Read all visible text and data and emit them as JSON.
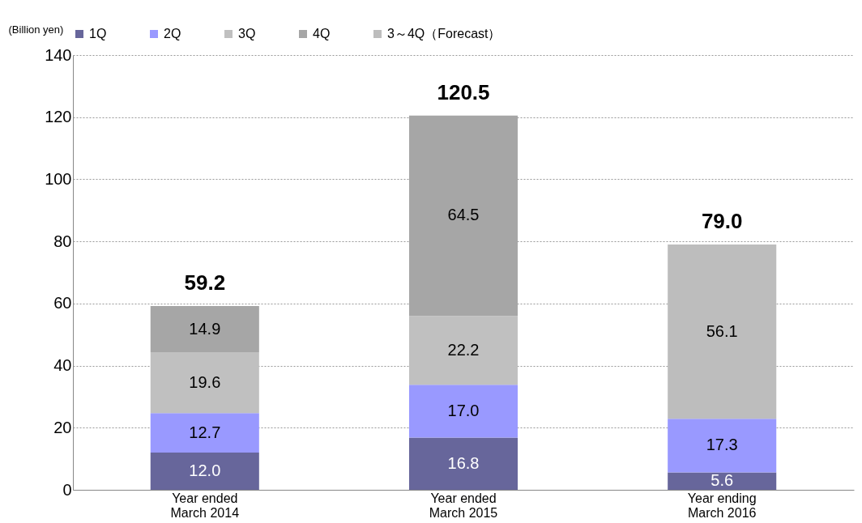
{
  "chart_data": {
    "type": "bar",
    "stacked": true,
    "ylabel": "(Billion yen)",
    "categories": [
      "Year ended\nMarch 2014",
      "Year ended\nMarch 2015",
      "Year ending\nMarch 2016"
    ],
    "series": [
      {
        "name": "1Q",
        "color": "#67669b",
        "values": [
          12.0,
          16.8,
          5.6
        ],
        "value_labels": [
          "12.0",
          "16.8",
          "5.6"
        ]
      },
      {
        "name": "2Q",
        "color": "#9999ff",
        "values": [
          12.7,
          17.0,
          17.3
        ],
        "value_labels": [
          "12.7",
          "17.0",
          "17.3"
        ]
      },
      {
        "name": "3Q",
        "color": "#c0c0c0",
        "values": [
          19.6,
          22.2,
          null
        ],
        "value_labels": [
          "19.6",
          "22.2",
          null
        ]
      },
      {
        "name": "4Q",
        "color": "#a6a6a6",
        "values": [
          14.9,
          64.5,
          null
        ],
        "value_labels": [
          "14.9",
          "64.5",
          null
        ]
      },
      {
        "name": "3～4Q（Forecast）",
        "color": "#bdbdbd",
        "values": [
          null,
          null,
          56.1
        ],
        "value_labels": [
          null,
          null,
          "56.1"
        ]
      }
    ],
    "totals": [
      "59.2",
      "120.5",
      "79.0"
    ],
    "ylim": [
      0,
      140
    ],
    "yticks": [
      0,
      20,
      40,
      60,
      80,
      100,
      120,
      140
    ],
    "grid": "y",
    "legend": "top"
  }
}
